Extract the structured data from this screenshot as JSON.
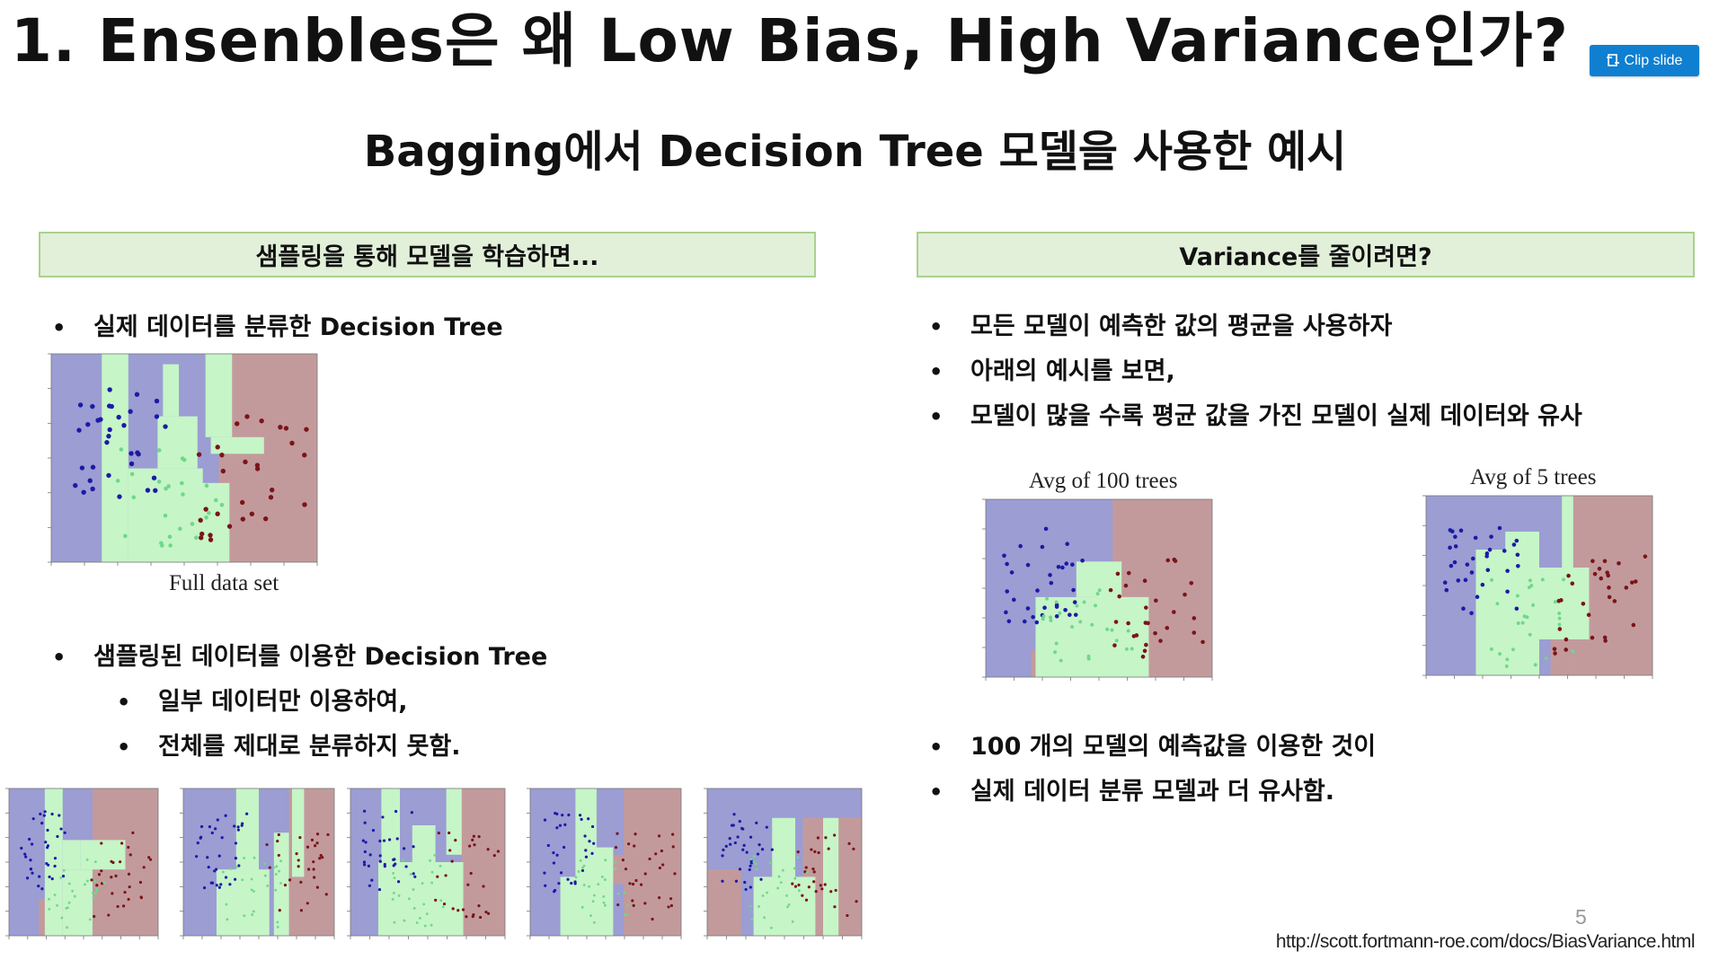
{
  "slide": {
    "title": "1. Ensenbles은 왜 Low Bias, High Variance인가?",
    "subtitle": "Bagging에서 Decision Tree 모델을 사용한 예시",
    "page_number": "5",
    "source_url": "http://scott.fortmann-roe.com/docs/BiasVariance.html"
  },
  "toolbar": {
    "clip_label": "Clip slide",
    "clip_icon": "clip-icon"
  },
  "left": {
    "heading": "샘플링을 통해 모델을 학습하면...",
    "bullet1": "실제 데이터를 분류한 Decision Tree",
    "full_caption": "Full data set",
    "bullet2": "샘플링된 데이터를 이용한 Decision Tree",
    "sub1": "일부 데이터만 이용하여,",
    "sub2": "전체를 제대로 분류하지 못함."
  },
  "right": {
    "heading": "Variance를 줄이려면?",
    "bullet1": "모든 모델이 예측한 값의 평균을 사용하자",
    "bullet2": "아래의 예시를 보면,",
    "bullet3": "모델이 많을 수록 평균 값을 가진 모델이 실제 데이터와 유사",
    "avg100_caption": "Avg of 100 trees",
    "avg5_caption": "Avg of 5 trees",
    "bullet4": "100 개의 모델의 예측값을 이용한 것이",
    "bullet5": "실제 데이터 분류 모델과 더 유사함."
  },
  "colors": {
    "region_blue": "#9b9dd3",
    "region_green": "#c6f5c7",
    "region_red": "#c39a9c",
    "point_blue": "#1b1aa6",
    "point_red": "#7a1418",
    "point_green": "#6fd889",
    "header_fill": "#e2f0d9",
    "header_border": "#a9d18e",
    "clip_button": "#0f7fd1"
  }
}
